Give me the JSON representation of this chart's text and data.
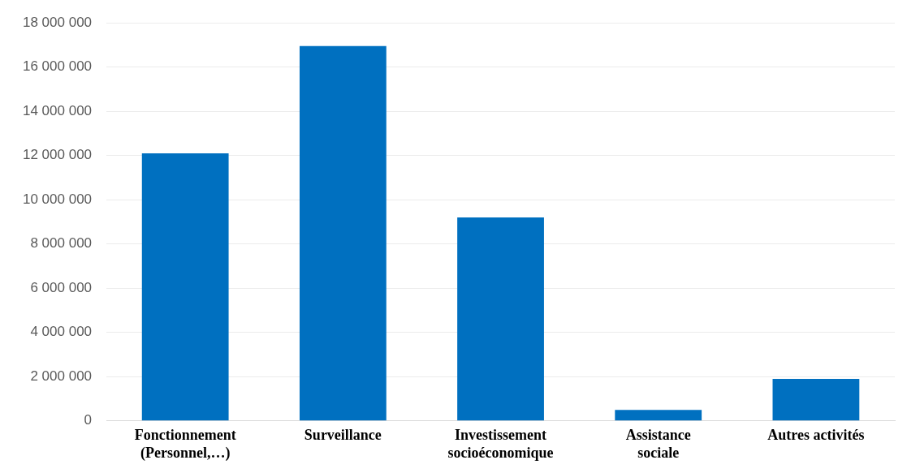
{
  "chart_data": {
    "type": "bar",
    "categories": [
      "Fonctionnement\n(Personnel,…)",
      "Surveillance",
      "Investissement\nsocioéconomique",
      "Assistance\nsociale",
      "Autres activités"
    ],
    "values": [
      12100000,
      16950000,
      9200000,
      500000,
      1900000
    ],
    "color": "#0070c0",
    "ylim": [
      0,
      18000000
    ],
    "yticks": [
      {
        "value": 0,
        "label": "0"
      },
      {
        "value": 2000000,
        "label": "2 000 000"
      },
      {
        "value": 4000000,
        "label": "4 000 000"
      },
      {
        "value": 6000000,
        "label": "6 000 000"
      },
      {
        "value": 8000000,
        "label": "8 000 000"
      },
      {
        "value": 10000000,
        "label": "10 000 000"
      },
      {
        "value": 12000000,
        "label": "12 000 000"
      },
      {
        "value": 14000000,
        "label": "14 000 000"
      },
      {
        "value": 16000000,
        "label": "16 000 000"
      },
      {
        "value": 18000000,
        "label": "18 000 000"
      }
    ],
    "grid": "y",
    "legend": false
  }
}
